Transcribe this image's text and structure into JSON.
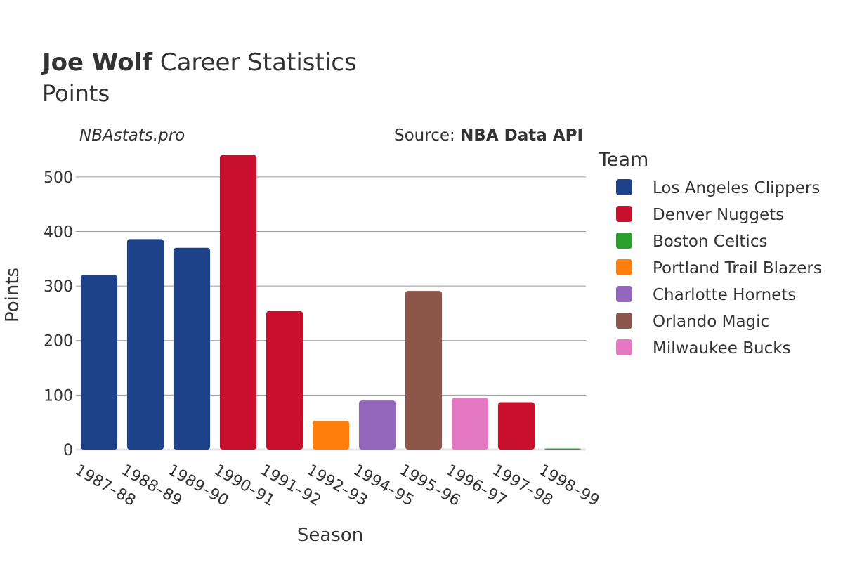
{
  "header": {
    "title_bold": "Joe Wolf",
    "title_rest": " Career Statistics",
    "subtitle": "Points"
  },
  "watermark": "NBAstats.pro",
  "source": {
    "label": "Source: ",
    "name": "NBA Data API"
  },
  "legend": {
    "title": "Team",
    "items": [
      {
        "name": "Los Angeles Clippers",
        "color": "#1d428a"
      },
      {
        "name": "Denver Nuggets",
        "color": "#c8102e"
      },
      {
        "name": "Boston Celtics",
        "color": "#2ca02c"
      },
      {
        "name": "Portland Trail Blazers",
        "color": "#ff7f0e"
      },
      {
        "name": "Charlotte Hornets",
        "color": "#9467bd"
      },
      {
        "name": "Orlando Magic",
        "color": "#8c564b"
      },
      {
        "name": "Milwaukee Bucks",
        "color": "#e377c2"
      }
    ]
  },
  "chart_data": {
    "type": "bar",
    "title": "Joe Wolf Career Statistics",
    "subtitle": "Points",
    "xlabel": "Season",
    "ylabel": "Points",
    "ylim": [
      0,
      550
    ],
    "yticks": [
      0,
      100,
      200,
      300,
      400,
      500
    ],
    "grid": true,
    "legend_position": "right",
    "categories": [
      "1987–88",
      "1988–89",
      "1989–90",
      "1990–91",
      "1991–92",
      "1992–93",
      "1994–95",
      "1995–96",
      "1996–97",
      "1997–98",
      "1998–99"
    ],
    "values": [
      320,
      386,
      370,
      540,
      254,
      53,
      90,
      291,
      95,
      87,
      2
    ],
    "teams": [
      "Los Angeles Clippers",
      "Los Angeles Clippers",
      "Los Angeles Clippers",
      "Denver Nuggets",
      "Denver Nuggets",
      "Portland Trail Blazers",
      "Charlotte Hornets",
      "Orlando Magic",
      "Milwaukee Bucks",
      "Denver Nuggets",
      "Boston Celtics"
    ]
  }
}
